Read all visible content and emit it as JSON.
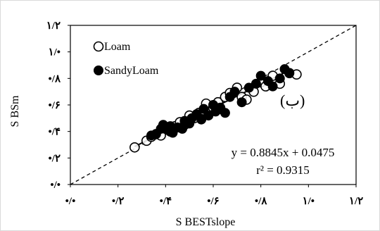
{
  "chart_data": {
    "type": "scatter",
    "xlabel": "S BESTslope",
    "ylabel": "S BSm",
    "xlim": [
      0,
      1.2
    ],
    "ylim": [
      0,
      1.2
    ],
    "x_tick_values": [
      0,
      0.2,
      0.4,
      0.6,
      0.8,
      1.0,
      1.2
    ],
    "x_tick_labels": [
      "•/•",
      "•/٢",
      "•/۴",
      "•/۶",
      "•/٨",
      "١/•",
      "١/٢"
    ],
    "y_tick_values": [
      0,
      0.2,
      0.4,
      0.6,
      0.8,
      1.0,
      1.2
    ],
    "y_tick_labels": [
      "•/•",
      "•/٢",
      "•/۴",
      "•/۶",
      "•/٨",
      "١/•",
      "١/٢"
    ],
    "grid": false,
    "legend_position": "top-left",
    "panel_label": "(ب)",
    "series": [
      {
        "name": "Loam",
        "marker": "open-circle",
        "color": "#000000",
        "x": [
          0.27,
          0.32,
          0.34,
          0.36,
          0.38,
          0.4,
          0.42,
          0.44,
          0.46,
          0.48,
          0.5,
          0.52,
          0.54,
          0.56,
          0.57,
          0.59,
          0.6,
          0.62,
          0.63,
          0.65,
          0.67,
          0.7,
          0.72,
          0.74,
          0.77,
          0.8,
          0.82,
          0.85,
          0.88,
          0.92,
          0.95
        ],
        "y": [
          0.28,
          0.33,
          0.36,
          0.38,
          0.37,
          0.42,
          0.4,
          0.44,
          0.47,
          0.45,
          0.52,
          0.5,
          0.54,
          0.56,
          0.61,
          0.55,
          0.58,
          0.62,
          0.57,
          0.66,
          0.69,
          0.73,
          0.66,
          0.64,
          0.7,
          0.77,
          0.74,
          0.82,
          0.76,
          0.84,
          0.83
        ]
      },
      {
        "name": "SandyLoam",
        "marker": "filled-circle",
        "color": "#000000",
        "x": [
          0.34,
          0.36,
          0.38,
          0.39,
          0.41,
          0.42,
          0.43,
          0.45,
          0.47,
          0.48,
          0.5,
          0.51,
          0.53,
          0.55,
          0.56,
          0.58,
          0.6,
          0.61,
          0.63,
          0.65,
          0.67,
          0.69,
          0.72,
          0.75,
          0.78,
          0.8,
          0.83,
          0.85,
          0.88,
          0.9,
          0.92
        ],
        "y": [
          0.37,
          0.38,
          0.42,
          0.45,
          0.41,
          0.44,
          0.39,
          0.43,
          0.42,
          0.48,
          0.46,
          0.5,
          0.53,
          0.49,
          0.57,
          0.52,
          0.6,
          0.55,
          0.58,
          0.54,
          0.66,
          0.7,
          0.62,
          0.73,
          0.76,
          0.82,
          0.78,
          0.74,
          0.8,
          0.87,
          0.84
        ]
      }
    ],
    "reference_line": {
      "style": "dashed",
      "slope": 1,
      "intercept": 0
    },
    "fit_line": {
      "slope": 0.8845,
      "intercept": 0.0475,
      "x_range": [
        0.27,
        0.93
      ]
    },
    "equation_text": "y = 0.8845x + 0.0475",
    "r2_text": "r² = 0.9315"
  }
}
